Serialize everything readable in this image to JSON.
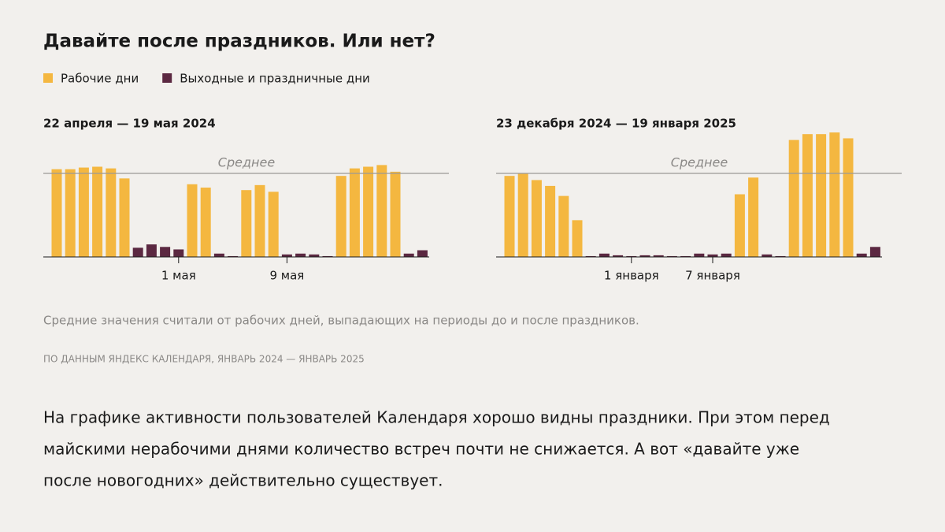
{
  "title": "Давайте после праздников. Или нет?",
  "legend": [
    {
      "name": "Рабочие дни",
      "color": "#f4b740"
    },
    {
      "name": "Выходные и праздничные дни",
      "color": "#5b2841"
    }
  ],
  "chart_data": [
    {
      "type": "bar",
      "title": "22 апреля — 19 мая 2024",
      "categories": [
        null,
        null,
        null,
        null,
        null,
        null,
        null,
        null,
        null,
        "1 мая",
        null,
        null,
        null,
        null,
        null,
        null,
        null,
        "9 мая",
        null,
        null,
        null,
        null,
        null,
        null,
        null,
        null,
        null,
        null
      ],
      "series": [
        {
          "color": "#f4b740",
          "values": [
            105,
            105,
            107,
            108,
            106,
            94,
            null,
            null,
            null,
            null,
            87,
            83,
            null,
            null,
            80,
            86,
            78,
            null,
            null,
            null,
            null,
            97,
            106,
            108,
            110,
            102,
            null,
            null
          ]
        },
        {
          "color": "#5b2841",
          "values": [
            null,
            null,
            null,
            null,
            null,
            null,
            11,
            15,
            12,
            9,
            null,
            null,
            4,
            1,
            null,
            null,
            null,
            3,
            4,
            3,
            1,
            null,
            null,
            null,
            null,
            null,
            4,
            8
          ]
        }
      ],
      "mean": {
        "value": 100,
        "label": "Среднее"
      },
      "ylim": [
        0,
        150
      ]
    },
    {
      "type": "bar",
      "title": "23 декабря 2024 — 19 января 2025",
      "categories": [
        null,
        null,
        null,
        null,
        null,
        null,
        null,
        null,
        null,
        "1 января",
        null,
        null,
        null,
        null,
        null,
        "7 января",
        null,
        null,
        null,
        null,
        null,
        null,
        null,
        null,
        null,
        null,
        null,
        null
      ],
      "series": [
        {
          "color": "#f4b740",
          "values": [
            97,
            100,
            92,
            85,
            73,
            44,
            null,
            null,
            null,
            null,
            null,
            null,
            null,
            null,
            null,
            null,
            null,
            75,
            95,
            null,
            null,
            140,
            147,
            147,
            149,
            142,
            null,
            null
          ]
        },
        {
          "color": "#5b2841",
          "values": [
            null,
            null,
            null,
            null,
            null,
            null,
            1,
            4,
            2,
            1,
            2,
            2,
            1,
            1,
            4,
            3,
            4,
            null,
            null,
            3,
            1,
            null,
            null,
            null,
            null,
            null,
            4,
            12
          ]
        }
      ],
      "mean": {
        "value": 100,
        "label": "Среднее"
      },
      "ylim": [
        0,
        150
      ]
    }
  ],
  "note": "Средние значения считали от рабочих дней, выпадающих на периоды до и после праздников.",
  "source": "По данным Яндекс Календаря, январь 2024 — январь 2025",
  "body": [
    "На графике активности пользователей Календаря хорошо видны праздники. При этом перед",
    "майскими нерабочими днями количество встреч почти не снижается. А вот «давайте уже",
    "после новогодних» действительно существует."
  ]
}
